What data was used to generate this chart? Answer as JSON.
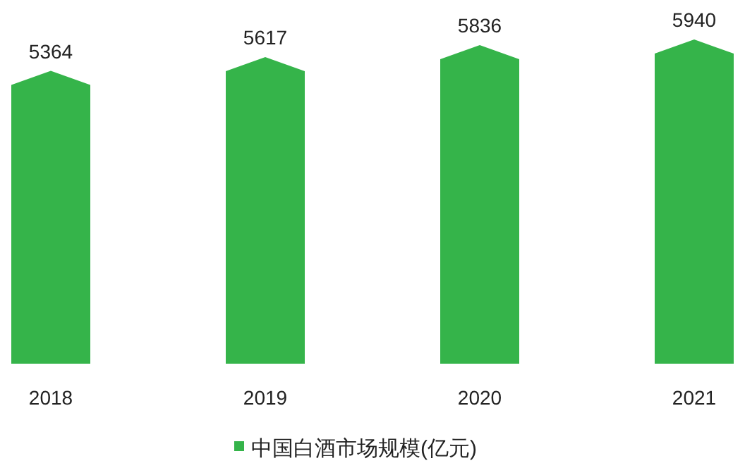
{
  "chart_data": {
    "type": "bar",
    "categories": [
      "2018",
      "2019",
      "2020",
      "2021"
    ],
    "series": [
      {
        "name": "中国白酒市场规模(亿元)",
        "color": "#35b44a",
        "values": [
          5364,
          5617,
          5836,
          5940
        ]
      }
    ],
    "data_labels": true,
    "legend": "bottom",
    "grid": false
  }
}
